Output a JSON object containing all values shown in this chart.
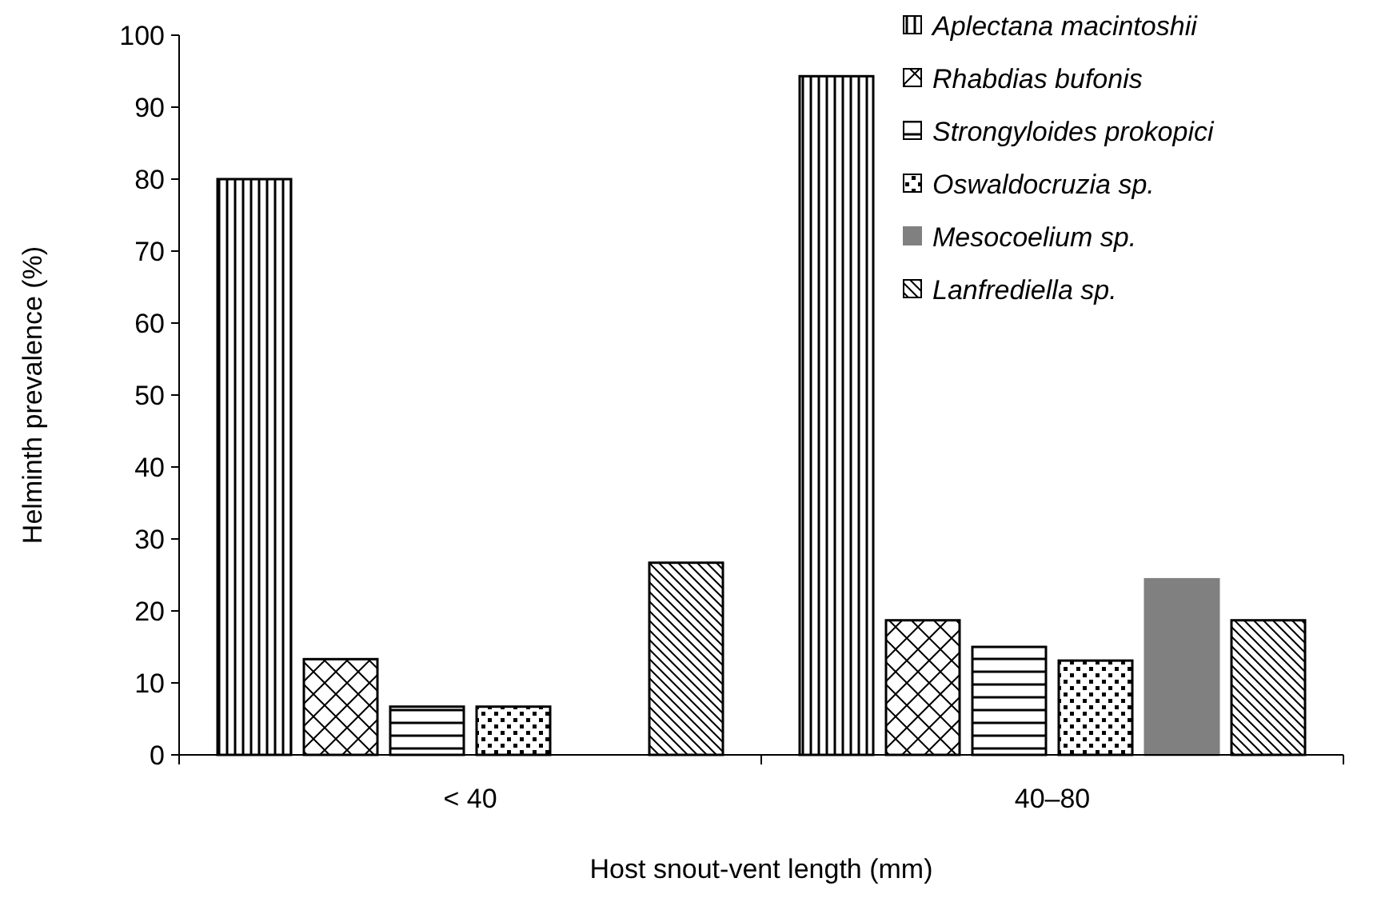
{
  "chart_data": {
    "type": "bar",
    "xlabel": "Host snout-vent length (mm)",
    "ylabel": "Helminth prevalence (%)",
    "categories": [
      "< 40",
      "40–80"
    ],
    "series": [
      {
        "name": "Aplectana macintoshii",
        "color": "#000000",
        "values": [
          80,
          94.3
        ]
      },
      {
        "name": "Rhabdias bufonis",
        "color": "#000000",
        "values": [
          13.3,
          18.7
        ]
      },
      {
        "name": "Strongyloides prokopici",
        "color": "#000000",
        "values": [
          6.7,
          15
        ]
      },
      {
        "name": "Oswaldocruzia sp.",
        "color": "#000000",
        "values": [
          6.7,
          13.1
        ]
      },
      {
        "name": "Mesocoelium sp.",
        "color": "#808080",
        "values": [
          0,
          24.4
        ]
      },
      {
        "name": "Lanfrediella sp.",
        "color": "#000000",
        "values": [
          26.7,
          18.7
        ]
      }
    ],
    "ylim": [
      0,
      100
    ],
    "yticks": [
      0,
      10,
      20,
      30,
      40,
      50,
      60,
      70,
      80,
      90,
      100
    ],
    "grid": false,
    "legend": "top right"
  }
}
